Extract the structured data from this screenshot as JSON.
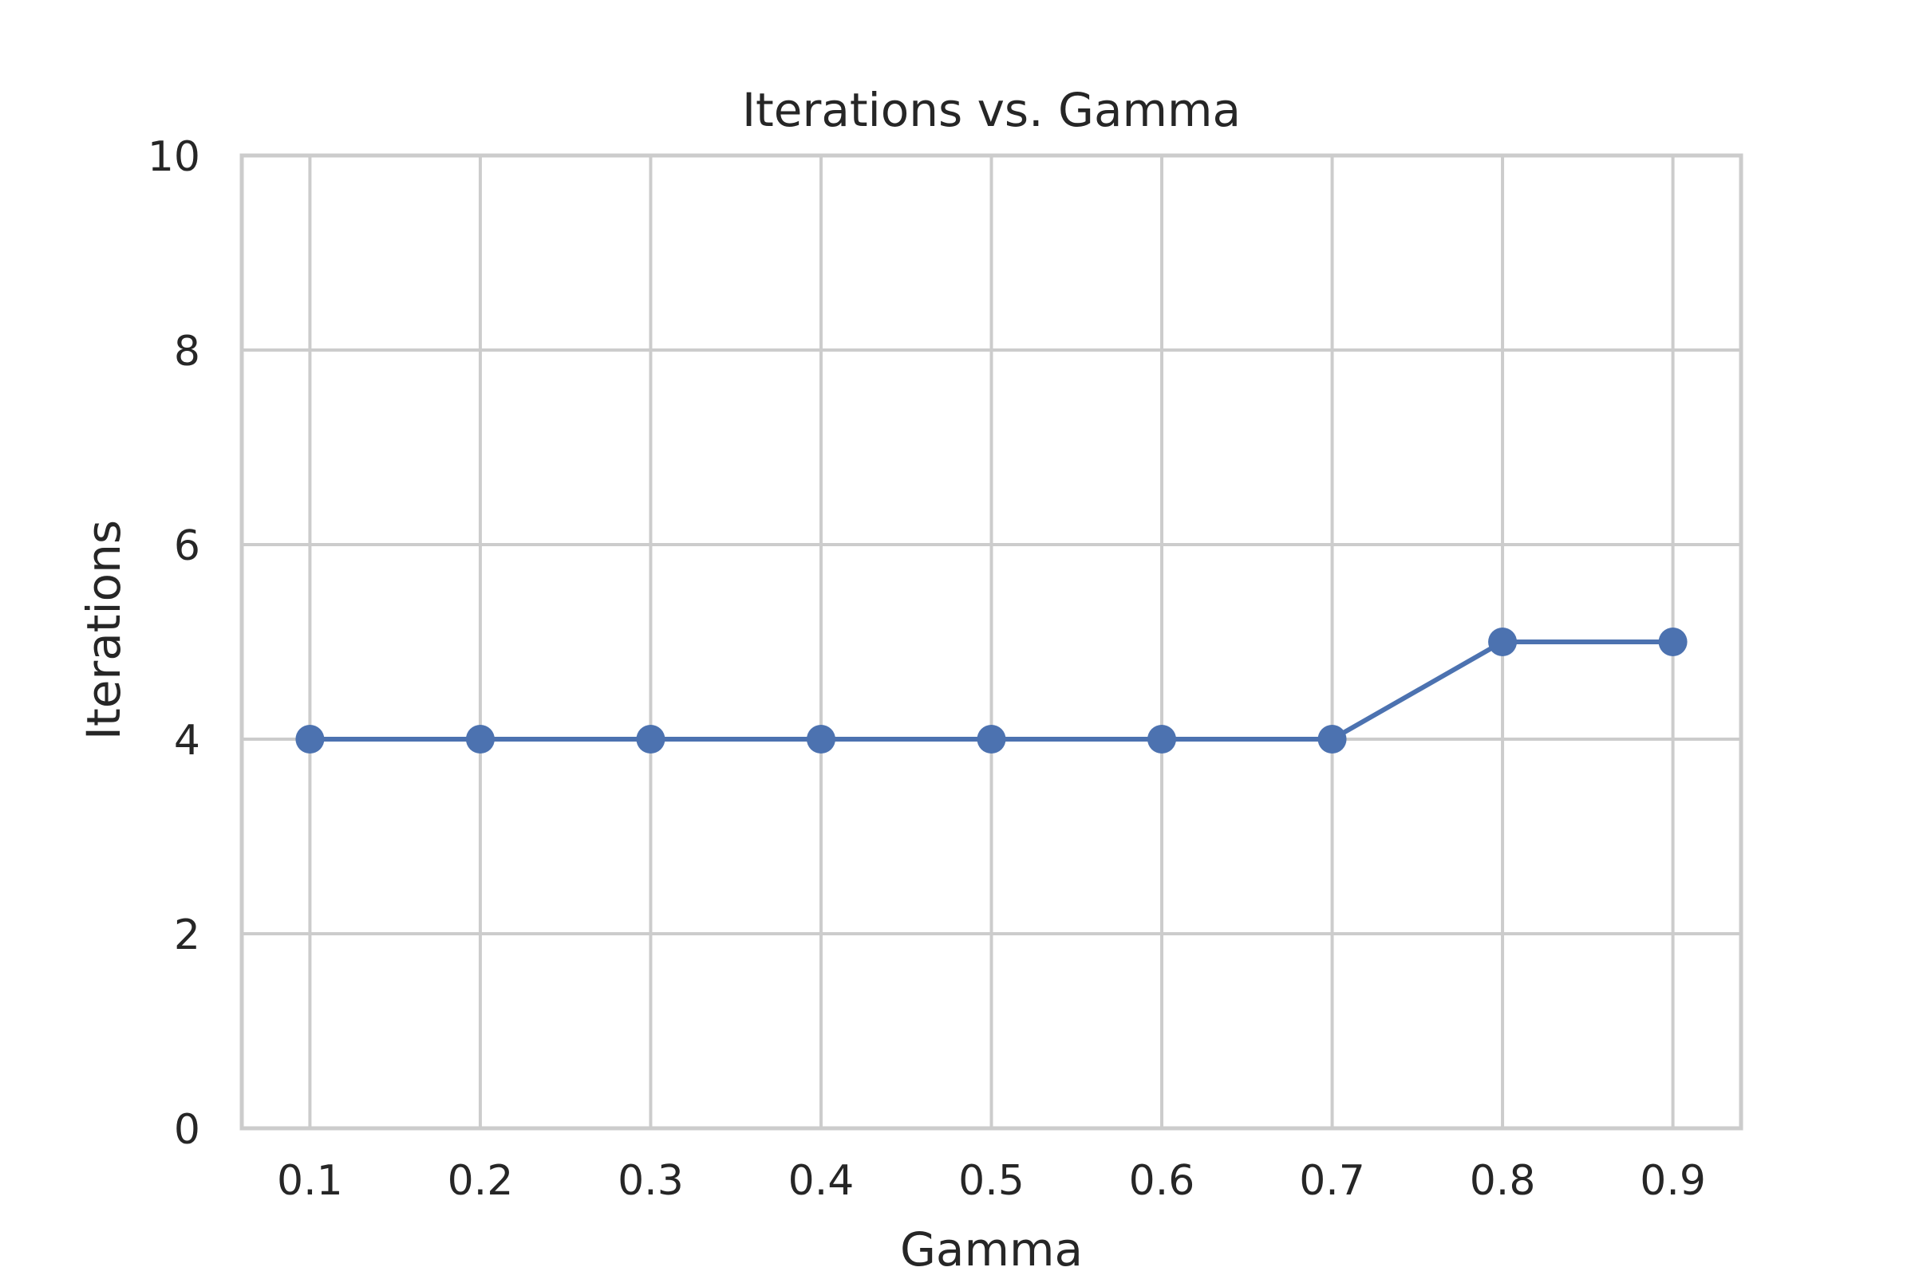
{
  "chart_data": {
    "type": "line",
    "title": "Iterations vs. Gamma",
    "xlabel": "Gamma",
    "ylabel": "Iterations",
    "x": [
      0.1,
      0.2,
      0.3,
      0.4,
      0.5,
      0.6,
      0.7,
      0.8,
      0.9
    ],
    "x_tick_labels": [
      "0.1",
      "0.2",
      "0.3",
      "0.4",
      "0.5",
      "0.6",
      "0.7",
      "0.8",
      "0.9"
    ],
    "series": [
      {
        "values": [
          4,
          4,
          4,
          4,
          4,
          4,
          4,
          5,
          5
        ],
        "color": "#4c72b0",
        "marker": "circle"
      }
    ],
    "ylim": [
      0,
      10
    ],
    "y_ticks": [
      0,
      2,
      4,
      6,
      8,
      10
    ],
    "y_tick_labels": [
      "0",
      "2",
      "4",
      "6",
      "8",
      "10"
    ],
    "grid": true,
    "legend": "none"
  }
}
